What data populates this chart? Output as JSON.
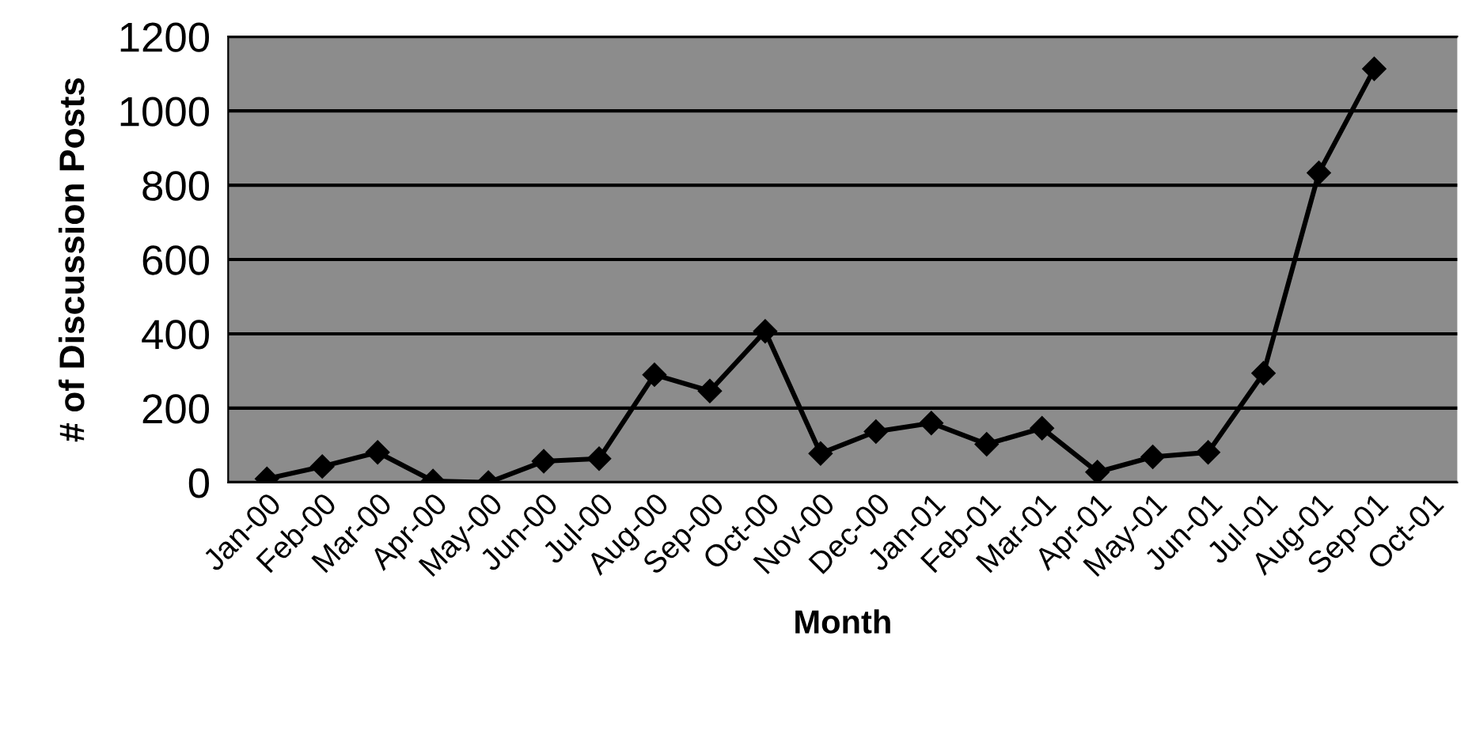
{
  "chart_data": {
    "type": "line",
    "xlabel": "Month",
    "ylabel": "# of Discussion Posts",
    "categories": [
      "Jan-00",
      "Feb-00",
      "Mar-00",
      "Apr-00",
      "May-00",
      "Jun-00",
      "Jul-00",
      "Aug-00",
      "Sep-00",
      "Oct-00",
      "Nov-00",
      "Dec-00",
      "Jan-01",
      "Feb-01",
      "Mar-01",
      "Apr-01",
      "May-01",
      "Jun-01",
      "Jul-01",
      "Aug-01",
      "Sep-01",
      "Oct-01"
    ],
    "series": [
      {
        "color": "#000000",
        "values": [
          10,
          43,
          81,
          4,
          0,
          57,
          64,
          290,
          246,
          407,
          78,
          137,
          160,
          103,
          146,
          28,
          69,
          81,
          294,
          833,
          1113,
          null
        ]
      }
    ],
    "ylim": [
      0,
      1200
    ],
    "yticks": [
      0,
      200,
      400,
      600,
      800,
      1000,
      1200
    ],
    "grid": "y",
    "marker": "diamond",
    "line_style": "solid"
  }
}
